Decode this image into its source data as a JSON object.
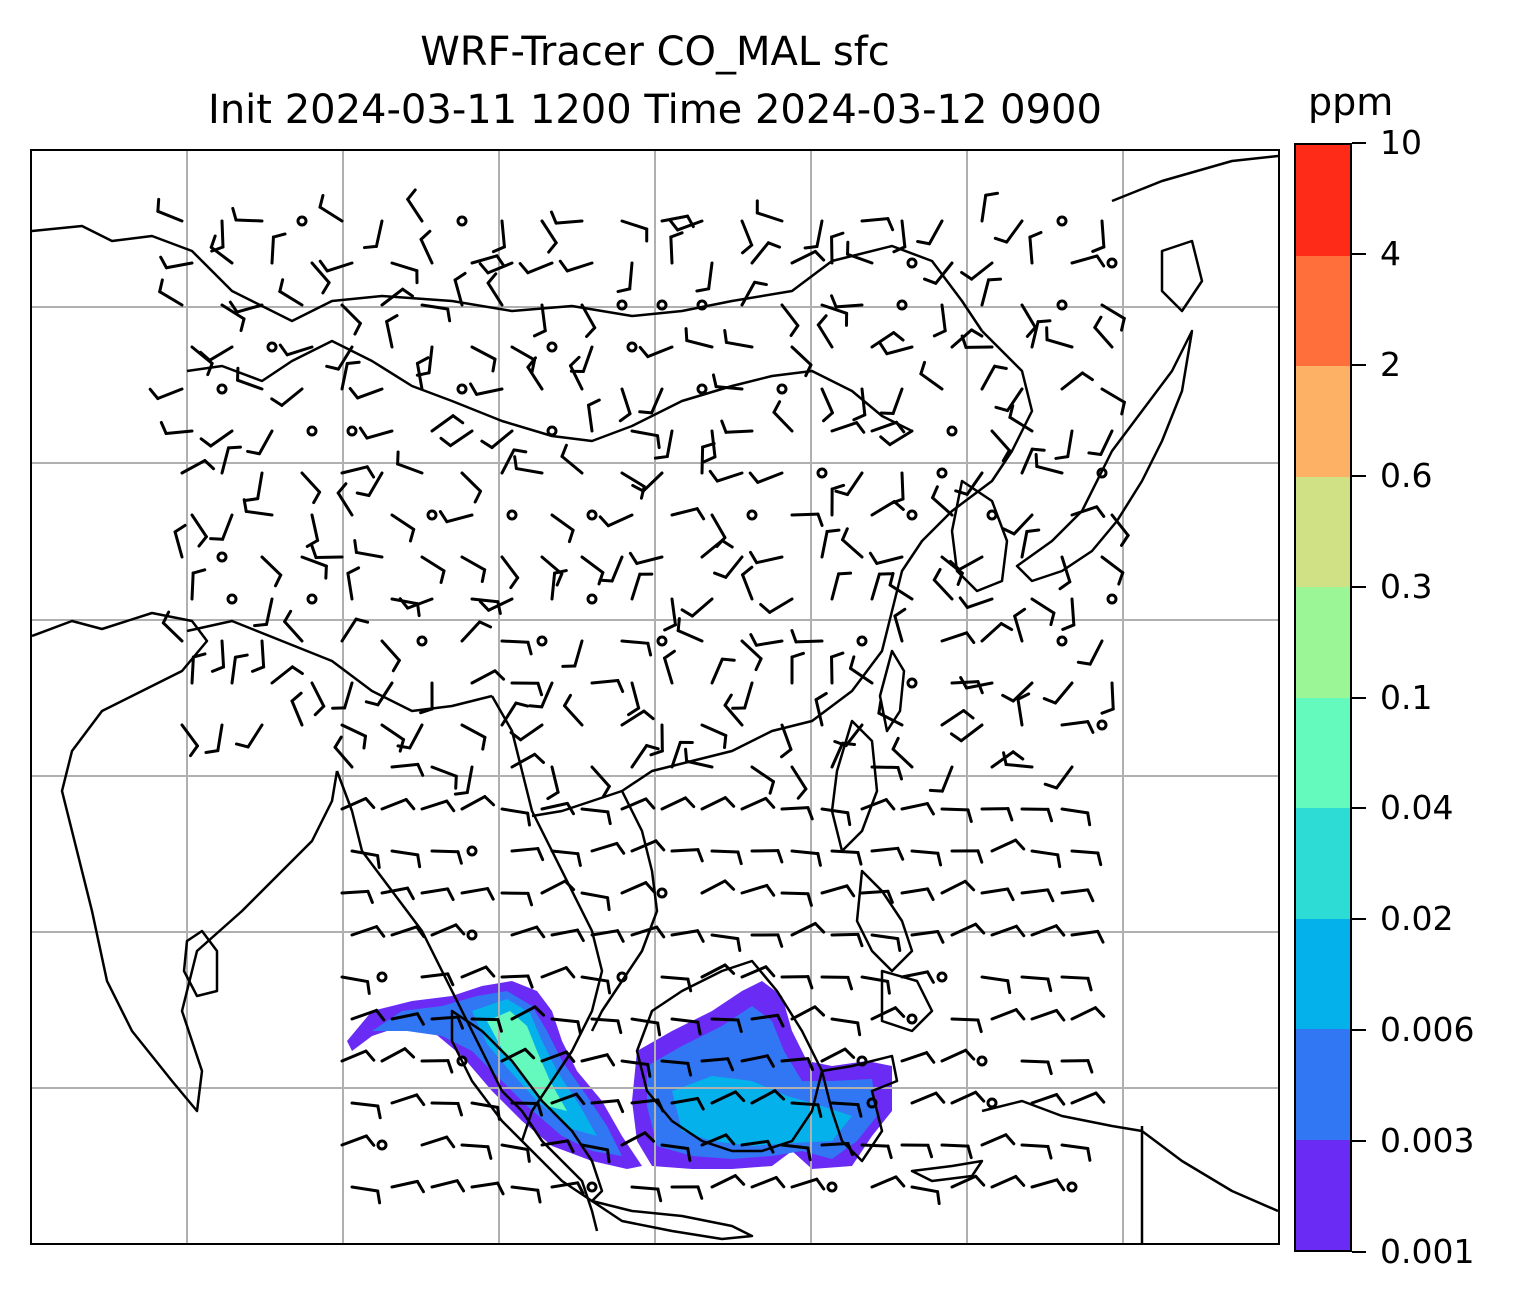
{
  "title": {
    "line1": "WRF-Tracer CO_MAL sfc",
    "line2": "Init 2024-03-11 1200 Time 2024-03-12 0900"
  },
  "colorbar": {
    "unit": "ppm",
    "levels": [
      "0.001",
      "0.003",
      "0.006",
      "0.02",
      "0.04",
      "0.1",
      "0.3",
      "0.6",
      "2",
      "4",
      "10"
    ],
    "colors": [
      "#6a2cf5",
      "#3176f3",
      "#05b1ea",
      "#2ddcd4",
      "#64f9bd",
      "#9bf796",
      "#cfe184",
      "#fdb165",
      "#fe6f3b",
      "#fd2b17"
    ]
  },
  "map": {
    "gridlines": true,
    "coastline_color": "#000000",
    "grid_color": "#b0b0b0",
    "wind_barbs": true,
    "tracer_region": "Malaysia / Borneo"
  }
}
